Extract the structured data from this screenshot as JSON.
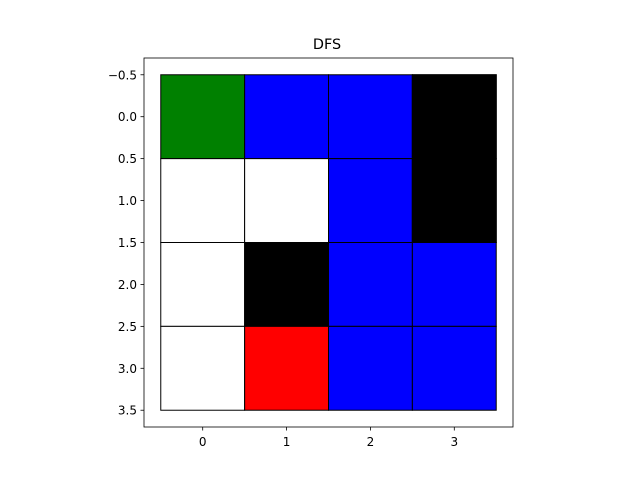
{
  "chart_data": {
    "type": "heatmap",
    "title": "DFS",
    "xlabel": "",
    "ylabel": "",
    "xlim": [
      -0.7,
      3.7
    ],
    "ylim": [
      3.7,
      -0.7
    ],
    "grid": false,
    "x_ticks": [
      0,
      1,
      2,
      3
    ],
    "x_tick_labels": [
      "0",
      "1",
      "2",
      "3"
    ],
    "y_ticks": [
      -0.5,
      0.0,
      0.5,
      1.0,
      1.5,
      2.0,
      2.5,
      3.0,
      3.5
    ],
    "y_tick_labels": [
      "−0.5",
      "0.0",
      "0.5",
      "1.0",
      "1.5",
      "2.0",
      "2.5",
      "3.0",
      "3.5"
    ],
    "cell_colors": {
      "green": "#008000",
      "blue": "#0000ff",
      "black": "#000000",
      "white": "#ffffff",
      "red": "#ff0000"
    },
    "grid_cells": [
      [
        "green",
        "blue",
        "blue",
        "black"
      ],
      [
        "white",
        "white",
        "blue",
        "black"
      ],
      [
        "white",
        "black",
        "blue",
        "blue"
      ],
      [
        "white",
        "red",
        "blue",
        "blue"
      ]
    ]
  }
}
